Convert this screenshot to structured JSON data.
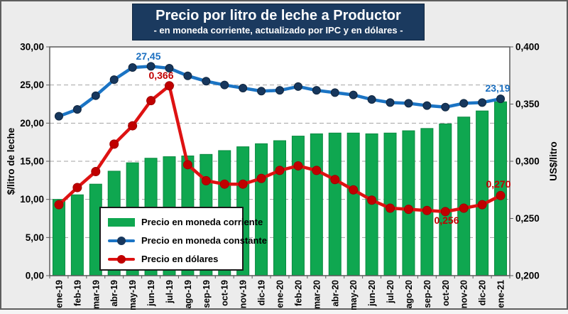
{
  "title": {
    "line1": "Precio por litro de leche a Productor",
    "line2": "- en moneda corriente, actualizado por IPC y en dólares -"
  },
  "axes": {
    "left": {
      "title": "$/litro de leche",
      "tick_labels": [
        "0,00",
        "5,00",
        "10,00",
        "15,00",
        "20,00",
        "25,00",
        "30,00"
      ]
    },
    "right": {
      "title": "US$/litro",
      "tick_labels": [
        "0,200",
        "0,250",
        "0,300",
        "0,350",
        "0,400"
      ]
    },
    "x": {
      "tick_labels": [
        "ene-19",
        "feb-19",
        "mar-19",
        "abr-19",
        "may-19",
        "jun-19",
        "jul-19",
        "ago-19",
        "sep-19",
        "oct-19",
        "nov-19",
        "dic-19",
        "ene-20",
        "feb-20",
        "mar-20",
        "abr-20",
        "may-20",
        "jun-20",
        "jul-20",
        "ago-20",
        "sep-20",
        "oct-20",
        "nov-20",
        "dic-20",
        "ene-21"
      ]
    }
  },
  "legend": {
    "items": [
      {
        "label": "Precio en moneda corriente",
        "type": "bar",
        "color": "#0FA750"
      },
      {
        "label": "Precio en moneda constante",
        "type": "line",
        "color": "#1B74C4"
      },
      {
        "label": "Precio en dólares",
        "type": "line",
        "color": "#DE1212"
      }
    ]
  },
  "annotations": {
    "blue_peak": "27,45",
    "red_peak": "0,366",
    "blue_last": "23,19",
    "red_last": "0,270",
    "red_min": "0,256"
  },
  "colors": {
    "bar": "#0FA750",
    "bar_border": "#0A8A40",
    "blue_line": "#1B74C4",
    "blue_marker": "#17375D",
    "red_line": "#DE1212",
    "red_marker": "#C00000",
    "blue_label": "#1B6FC0",
    "red_label": "#C00000",
    "title_bg": "#1B3A5F",
    "plot_bg": "#FFFFFF",
    "outer_bg": "#ECECEC",
    "grid": "#A3A3A3",
    "axis": "#595959"
  },
  "chart_data": {
    "type": "combo",
    "title": "Precio por litro de leche a Productor",
    "subtitle": "- en moneda corriente, actualizado por IPC y en dólares -",
    "grid": "horizontal dashed",
    "legend_position": "inside bottom-left",
    "categories": [
      "ene-19",
      "feb-19",
      "mar-19",
      "abr-19",
      "may-19",
      "jun-19",
      "jul-19",
      "ago-19",
      "sep-19",
      "oct-19",
      "nov-19",
      "dic-19",
      "ene-20",
      "feb-20",
      "mar-20",
      "abr-20",
      "may-20",
      "jun-20",
      "jul-20",
      "ago-20",
      "sep-20",
      "oct-20",
      "nov-20",
      "dic-20",
      "ene-21"
    ],
    "left_axis": {
      "label": "$/litro de leche",
      "min": 0,
      "max": 30,
      "step": 5
    },
    "right_axis": {
      "label": "US$/litro",
      "min": 0.2,
      "max": 0.4,
      "step": 0.05
    },
    "series": [
      {
        "name": "Precio en moneda corriente",
        "type": "bar",
        "axis": "left",
        "color": "#0FA750",
        "border": "#0A8A40",
        "values": [
          10.0,
          10.6,
          12.0,
          13.7,
          14.8,
          15.4,
          15.6,
          15.7,
          15.9,
          16.4,
          16.9,
          17.3,
          17.7,
          18.3,
          18.6,
          18.7,
          18.7,
          18.6,
          18.7,
          19.0,
          19.3,
          19.9,
          20.8,
          21.6,
          22.8
        ]
      },
      {
        "name": "Precio en moneda constante",
        "type": "line",
        "axis": "left",
        "color": "#1B74C4",
        "marker": "#17375D",
        "marker_edge": "#10263F",
        "values": [
          20.9,
          21.8,
          23.6,
          25.7,
          27.3,
          27.45,
          27.2,
          26.2,
          25.5,
          25.0,
          24.6,
          24.2,
          24.3,
          24.8,
          24.3,
          24.0,
          23.7,
          23.1,
          22.7,
          22.6,
          22.3,
          22.1,
          22.6,
          22.7,
          23.19
        ]
      },
      {
        "name": "Precio en dólares",
        "type": "line",
        "axis": "right",
        "color": "#DE1212",
        "marker": "#C00000",
        "marker_edge": "#A00000",
        "values": [
          0.262,
          0.277,
          0.291,
          0.315,
          0.331,
          0.353,
          0.366,
          0.297,
          0.283,
          0.28,
          0.28,
          0.285,
          0.292,
          0.296,
          0.292,
          0.284,
          0.275,
          0.266,
          0.259,
          0.258,
          0.257,
          0.256,
          0.259,
          0.262,
          0.27
        ]
      }
    ],
    "annotations": [
      {
        "series": "Precio en moneda constante",
        "category": "jun-19",
        "text": "27,45"
      },
      {
        "series": "Precio en dólares",
        "category": "jul-19",
        "text": "0,366"
      },
      {
        "series": "Precio en moneda constante",
        "category": "ene-21",
        "text": "23,19"
      },
      {
        "series": "Precio en dólares",
        "category": "ene-21",
        "text": "0,270"
      },
      {
        "series": "Precio en dólares",
        "category": "oct-20",
        "text": "0,256"
      }
    ]
  }
}
